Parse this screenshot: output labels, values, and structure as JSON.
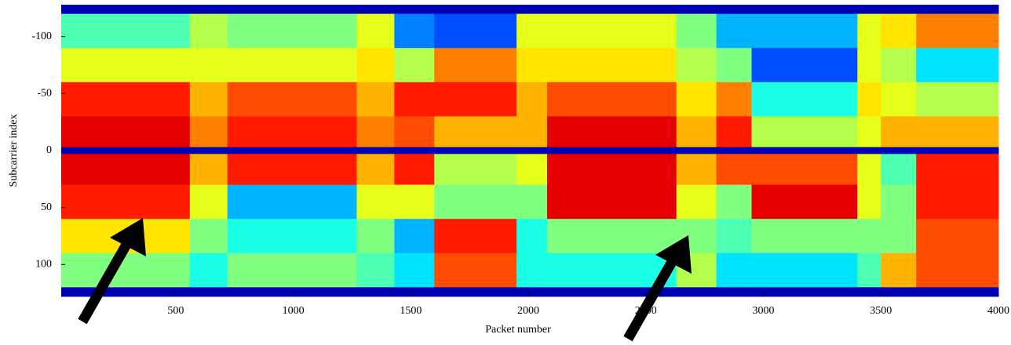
{
  "chart_data": {
    "type": "heatmap",
    "x_label": "Packet number",
    "y_label": "Subcarrier index",
    "xlim": [
      13,
      4000
    ],
    "ylim": [
      -128,
      128
    ],
    "y_inverted": true,
    "xticks": [
      500,
      1000,
      1500,
      2000,
      2500,
      3000,
      3500,
      4000
    ],
    "yticks": [
      -100,
      -50,
      0,
      50,
      100
    ],
    "colormap": "jet",
    "x_edges": [
      13,
      560,
      720,
      1270,
      1430,
      1600,
      1950,
      2080,
      2630,
      2800,
      2950,
      3400,
      3500,
      3650,
      4000
    ],
    "y_edges": [
      -128,
      -120,
      -90,
      -60,
      -30,
      -3,
      3,
      30,
      60,
      90,
      120,
      128
    ],
    "z": [
      [
        0.05,
        0.05,
        0.05,
        0.05,
        0.05,
        0.05,
        0.05,
        0.05,
        0.05,
        0.05,
        0.05,
        0.05,
        0.05,
        0.05
      ],
      [
        0.45,
        0.55,
        0.5,
        0.6,
        0.25,
        0.2,
        0.6,
        0.6,
        0.5,
        0.3,
        0.3,
        0.6,
        0.65,
        0.75
      ],
      [
        0.6,
        0.6,
        0.6,
        0.65,
        0.55,
        0.75,
        0.65,
        0.65,
        0.55,
        0.5,
        0.2,
        0.6,
        0.55,
        0.35
      ],
      [
        0.85,
        0.7,
        0.8,
        0.7,
        0.85,
        0.85,
        0.7,
        0.8,
        0.65,
        0.75,
        0.4,
        0.65,
        0.6,
        0.55
      ],
      [
        0.9,
        0.75,
        0.85,
        0.75,
        0.8,
        0.7,
        0.7,
        0.9,
        0.7,
        0.85,
        0.55,
        0.6,
        0.7,
        0.7
      ],
      [
        0.05,
        0.05,
        0.05,
        0.05,
        0.05,
        0.05,
        0.05,
        0.05,
        0.05,
        0.05,
        0.05,
        0.05,
        0.05,
        0.05
      ],
      [
        0.9,
        0.7,
        0.85,
        0.7,
        0.85,
        0.55,
        0.6,
        0.9,
        0.7,
        0.8,
        0.8,
        0.6,
        0.45,
        0.85
      ],
      [
        0.85,
        0.6,
        0.3,
        0.6,
        0.6,
        0.5,
        0.5,
        0.9,
        0.6,
        0.5,
        0.9,
        0.6,
        0.5,
        0.85
      ],
      [
        0.65,
        0.5,
        0.4,
        0.5,
        0.3,
        0.85,
        0.4,
        0.5,
        0.5,
        0.45,
        0.5,
        0.5,
        0.5,
        0.8
      ],
      [
        0.5,
        0.4,
        0.5,
        0.45,
        0.35,
        0.8,
        0.4,
        0.4,
        0.55,
        0.35,
        0.35,
        0.45,
        0.7,
        0.8
      ],
      [
        0.05,
        0.05,
        0.05,
        0.05,
        0.05,
        0.05,
        0.05,
        0.05,
        0.05,
        0.05,
        0.05,
        0.05,
        0.05,
        0.05
      ]
    ]
  }
}
